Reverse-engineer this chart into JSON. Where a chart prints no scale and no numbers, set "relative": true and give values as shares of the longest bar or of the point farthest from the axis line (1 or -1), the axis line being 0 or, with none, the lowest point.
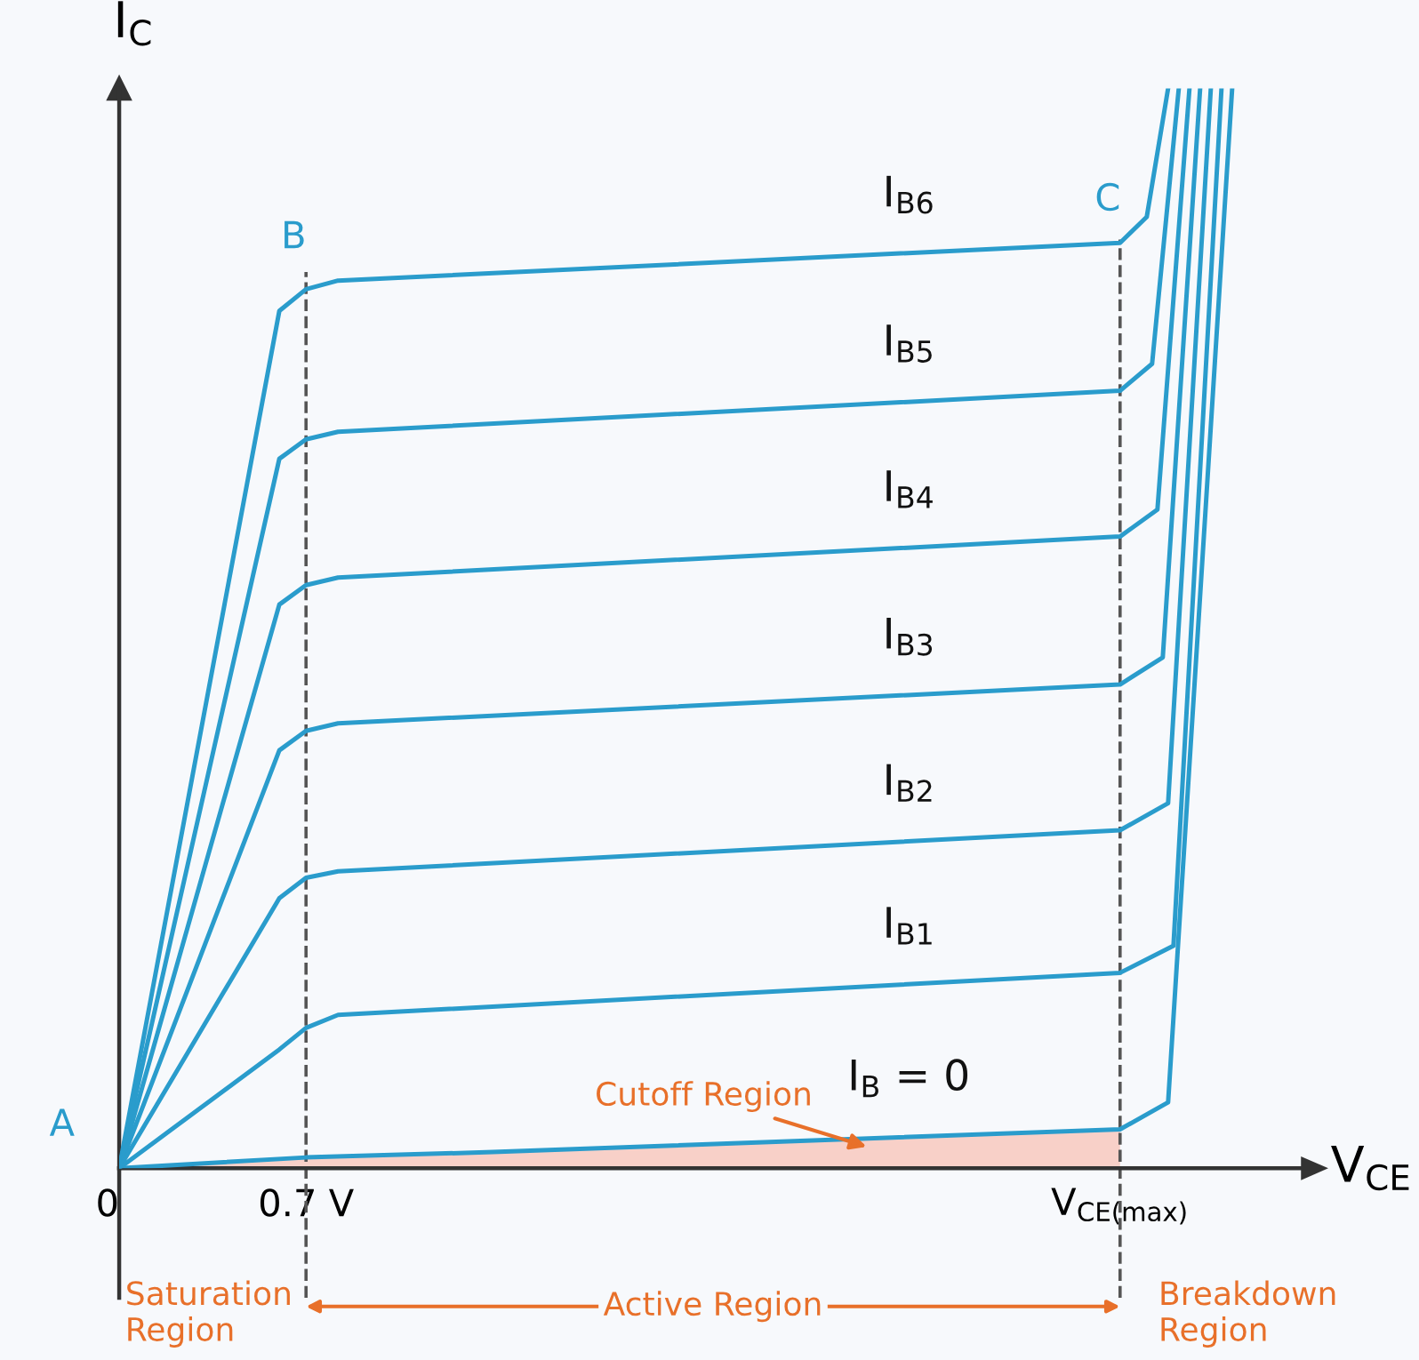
{
  "chart_data": {
    "type": "line",
    "relative": true,
    "xlabel": "V$_{CE}$",
    "ylabel": "I$_{C}$",
    "xlim": [
      0,
      4.45
    ],
    "xticks": [
      {
        "value": 0,
        "label": "0"
      },
      {
        "value": 0.7,
        "label": "0.7 V"
      },
      {
        "value": 3.75,
        "label": "V$_{CE(max)}$"
      }
    ],
    "legend": false,
    "grid": false,
    "marker": "none",
    "line_style": "solid",
    "series": [
      {
        "name": "I$_{B6}$",
        "color": "#2a9ccc",
        "x": [
          0,
          0.6,
          0.7,
          0.82,
          3.75,
          3.85,
          3.93
        ],
        "values": [
          0,
          0.794,
          0.814,
          0.822,
          0.857,
          0.881,
          1.0
        ]
      },
      {
        "name": "I$_{B5}$",
        "color": "#2a9ccc",
        "x": [
          0,
          0.6,
          0.7,
          0.82,
          3.75,
          3.87,
          3.97
        ],
        "values": [
          0,
          0.657,
          0.675,
          0.682,
          0.72,
          0.745,
          1.0
        ]
      },
      {
        "name": "I$_{B4}$",
        "color": "#2a9ccc",
        "x": [
          0,
          0.6,
          0.7,
          0.82,
          3.75,
          3.89,
          4.01
        ],
        "values": [
          0,
          0.522,
          0.54,
          0.547,
          0.585,
          0.61,
          1.0
        ]
      },
      {
        "name": "I$_{B3}$",
        "color": "#2a9ccc",
        "x": [
          0,
          0.6,
          0.7,
          0.82,
          3.75,
          3.91,
          4.05
        ],
        "values": [
          0,
          0.387,
          0.405,
          0.412,
          0.448,
          0.473,
          1.0
        ]
      },
      {
        "name": "I$_{B2}$",
        "color": "#2a9ccc",
        "x": [
          0,
          0.6,
          0.7,
          0.82,
          3.75,
          3.93,
          4.09
        ],
        "values": [
          0,
          0.25,
          0.269,
          0.275,
          0.313,
          0.338,
          1.0
        ]
      },
      {
        "name": "I$_{B1}$",
        "color": "#2a9ccc",
        "x": [
          0,
          0.6,
          0.7,
          0.82,
          3.75,
          3.95,
          4.13
        ],
        "values": [
          0,
          0.11,
          0.13,
          0.142,
          0.181,
          0.206,
          1.0
        ]
      },
      {
        "name": "I$_{B}$ = 0",
        "color": "#2a9ccc",
        "x": [
          0,
          0.7,
          1.4,
          3.75,
          3.93,
          4.17
        ],
        "values": [
          0,
          0.01,
          0.015,
          0.036,
          0.061,
          1.0
        ]
      },
      {
        "type": "area",
        "color": "#f8d0c8",
        "x": [
          0,
          0.7,
          1.4,
          3.75
        ],
        "values": [
          0,
          0.01,
          0.015,
          0.036
        ]
      }
    ],
    "ref_lines": [
      {
        "axis": "x",
        "value": 0.7,
        "color": "#555555",
        "line_style": "dashed"
      },
      {
        "axis": "x",
        "value": 3.75,
        "color": "#555555",
        "line_style": "dashed"
      }
    ],
    "annotations": [
      {
        "text": "A",
        "x": 0,
        "y": 0
      },
      {
        "text": "B",
        "x": 0.7,
        "y": 0.822
      },
      {
        "text": "C",
        "x": 3.75,
        "y": 0.857
      },
      {
        "text": "Cutoff Region",
        "x": 2.8,
        "y": 0.02
      },
      "Saturation\nRegion",
      "Active Region",
      "Breakdown\nRegion"
    ]
  }
}
